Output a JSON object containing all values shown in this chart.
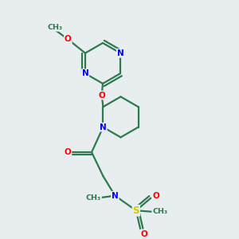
{
  "background_color": "#e8eef0",
  "bond_color": "#2d7a4f",
  "atom_color_N": "#0000ff",
  "atom_color_O": "#ff0000",
  "atom_color_S": "#cccc00",
  "atom_color_C": "#2d7a4f",
  "line_width": 1.6,
  "fig_size": [
    3.0,
    3.0
  ],
  "dpi": 100,
  "xlim": [
    0,
    10
  ],
  "ylim": [
    0,
    10
  ]
}
